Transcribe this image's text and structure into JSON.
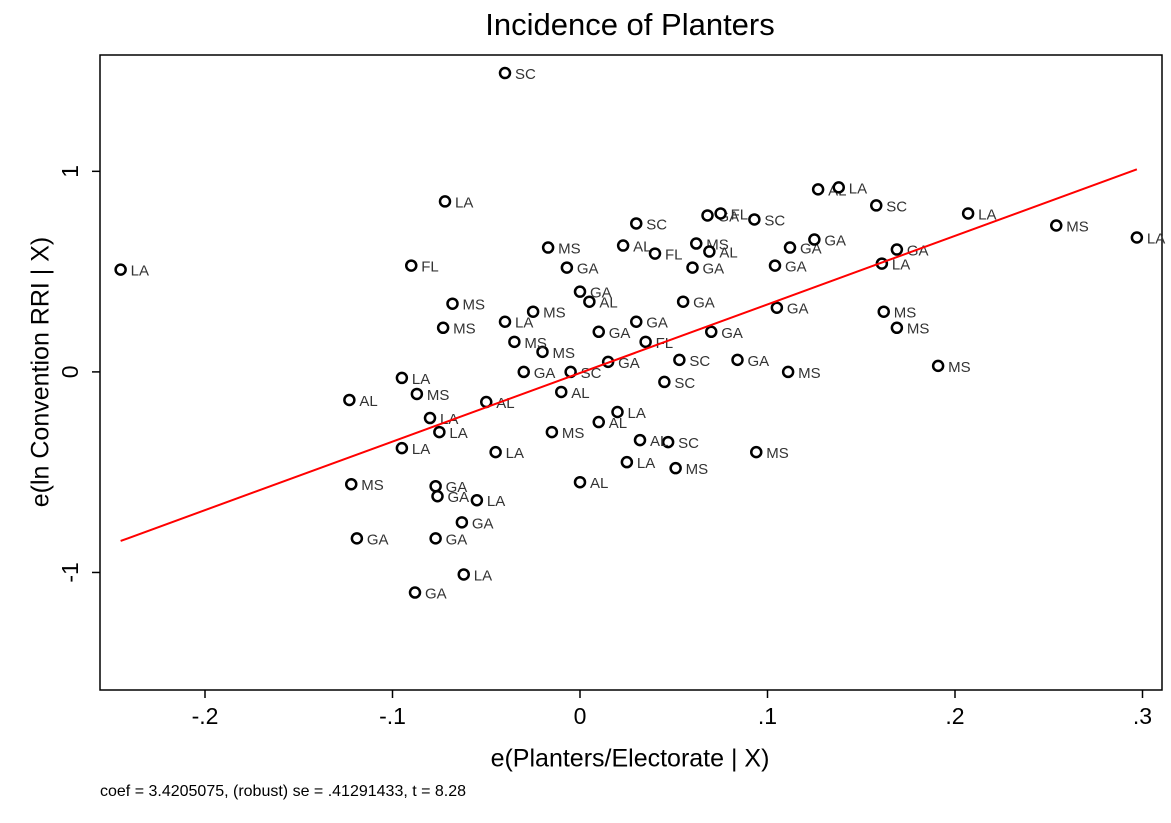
{
  "chart_data": {
    "type": "scatter",
    "title": "Incidence of Planters",
    "x_label": "e(Planters/Electorate | X)",
    "y_label": "e(ln Convention RRI | X)",
    "note": "coef = 3.4205075, (robust) se = .41291433, t = 8.28",
    "xlim": [
      -0.256,
      0.3104
    ],
    "ylim": [
      -1.586,
      1.58
    ],
    "xticks": [
      {
        "value": -0.2,
        "label": "-.2"
      },
      {
        "value": -0.1,
        "label": "-.1"
      },
      0,
      {
        "value": 0.1,
        "label": ".1"
      },
      {
        "value": 0.2,
        "label": ".2"
      },
      {
        "value": 0.3,
        "label": ".3"
      }
    ],
    "yticks": [
      -1,
      0,
      1
    ],
    "marker_color": "#000000",
    "x": [
      -0.245,
      -0.04,
      -0.072,
      -0.09,
      -0.068,
      -0.073,
      -0.095,
      -0.087,
      -0.123,
      -0.08,
      -0.075,
      -0.095,
      -0.122,
      -0.077,
      -0.076,
      -0.119,
      -0.077,
      -0.063,
      -0.062,
      -0.088,
      -0.055,
      0.03,
      -0.017,
      0.023,
      -0.007,
      0.04,
      0.06,
      0.062,
      0.068,
      0.075,
      0.093,
      0.069,
      0.104,
      0.112,
      0.127,
      0.138,
      0.158,
      0.207,
      0.254,
      0.297,
      0.125,
      0.161,
      0.169,
      0.162,
      0.169,
      0.191,
      0.111,
      0.094,
      0.051,
      0.047,
      0.105,
      0.084,
      0.053,
      0.032,
      -0.04,
      0.0,
      0.03,
      -0.02,
      -0.01,
      0.01,
      0.02,
      -0.03,
      0.005,
      -0.015,
      0.015,
      0.035,
      -0.045,
      -0.025,
      0.045,
      0.07,
      -0.05,
      0.0,
      0.025,
      -0.035,
      0.01,
      0.055,
      -0.005
    ],
    "y": [
      0.51,
      1.49,
      0.85,
      0.53,
      0.34,
      0.22,
      -0.03,
      -0.11,
      -0.14,
      -0.23,
      -0.3,
      -0.38,
      -0.56,
      -0.57,
      -0.62,
      -0.83,
      -0.83,
      -0.75,
      -1.01,
      -1.1,
      -0.64,
      0.74,
      0.62,
      0.63,
      0.52,
      0.59,
      0.52,
      0.64,
      0.78,
      0.79,
      0.76,
      0.6,
      0.53,
      0.62,
      0.91,
      0.92,
      0.83,
      0.79,
      0.73,
      0.67,
      0.66,
      0.54,
      0.61,
      0.3,
      0.22,
      0.03,
      0.0,
      -0.4,
      -0.48,
      -0.35,
      0.32,
      0.06,
      0.06,
      -0.34,
      0.25,
      -0.55,
      0.25,
      0.1,
      -0.1,
      0.2,
      -0.2,
      0.0,
      0.35,
      -0.3,
      0.05,
      0.15,
      -0.4,
      0.3,
      -0.05,
      0.2,
      -0.15,
      0.4,
      -0.45,
      0.15,
      -0.25,
      0.35,
      0.0
    ],
    "point_labels": [
      "LA",
      "SC",
      "LA",
      "FL",
      "MS",
      "MS",
      "LA",
      "MS",
      "AL",
      "LA",
      "LA",
      "LA",
      "MS",
      "GA",
      "GA",
      "GA",
      "GA",
      "GA",
      "LA",
      "GA",
      "LA",
      "SC",
      "MS",
      "AL",
      "GA",
      "FL",
      "GA",
      "MS",
      "GA",
      "FL",
      "SC",
      "AL",
      "GA",
      "GA",
      "AL",
      "LA",
      "SC",
      "LA",
      "MS",
      "LA",
      "GA",
      "LA",
      "GA",
      "MS",
      "MS",
      "MS",
      "MS",
      "MS",
      "MS",
      "SC",
      "GA",
      "GA",
      "SC",
      "AL",
      "LA",
      "AL",
      "GA",
      "MS",
      "AL",
      "GA",
      "LA",
      "GA",
      "AL",
      "MS",
      "GA",
      "FL",
      "LA",
      "MS",
      "SC",
      "GA",
      "AL",
      "GA",
      "LA",
      "MS",
      "AL",
      "GA",
      "SC"
    ],
    "fit": {
      "color": "#ff0000",
      "x": [
        -0.245,
        0.297
      ],
      "y": [
        -0.843,
        1.01
      ]
    }
  }
}
